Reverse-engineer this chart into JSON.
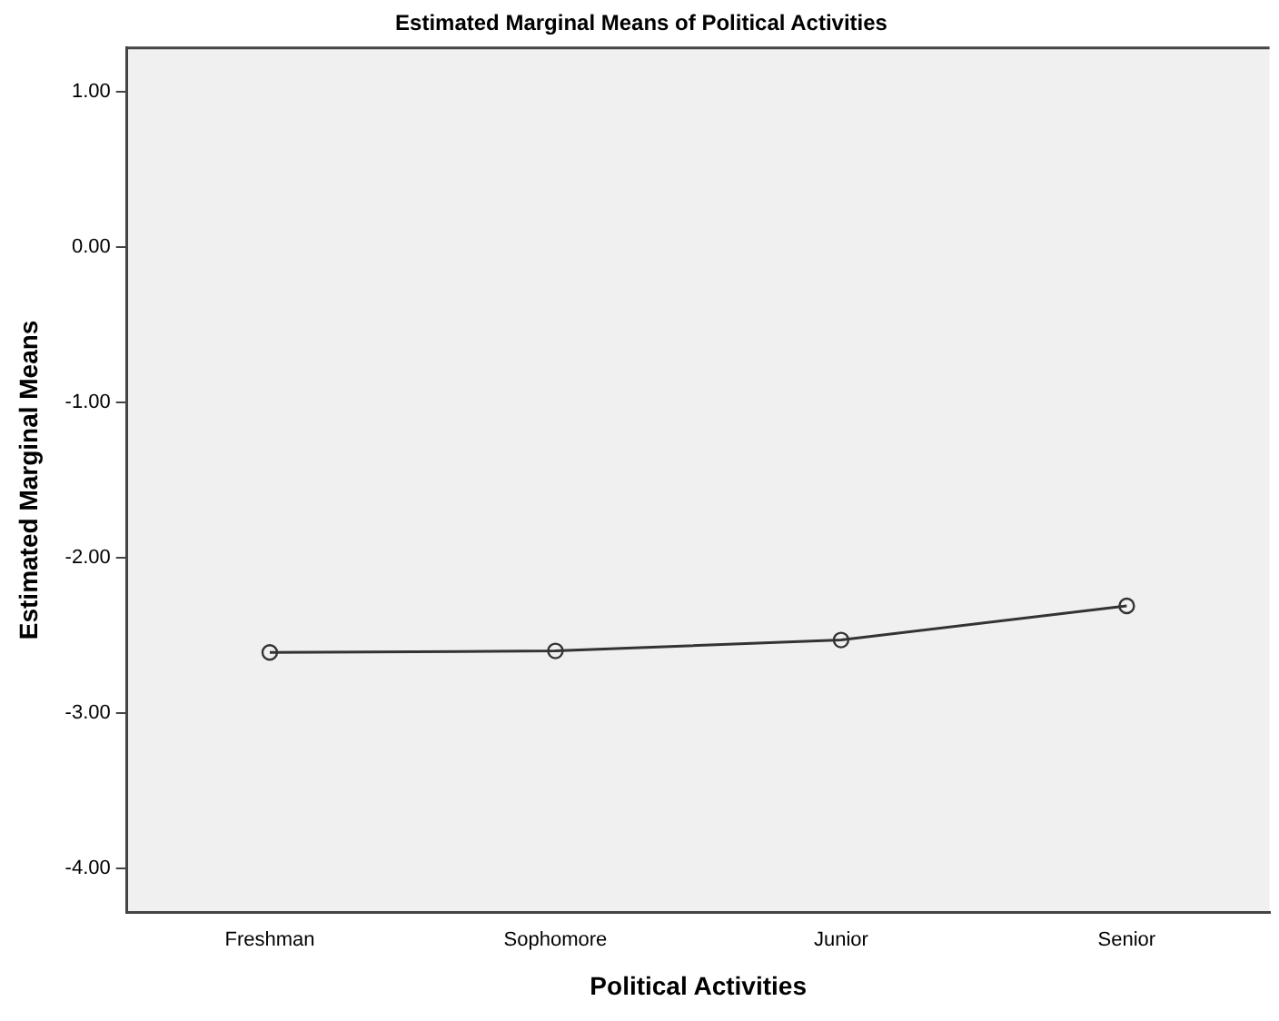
{
  "chart_data": {
    "type": "line",
    "title": "Estimated Marginal Means of Political Activities",
    "xlabel": "Political Activities",
    "ylabel": "Estimated Marginal Means",
    "categories": [
      "Freshman",
      "Sophomore",
      "Junior",
      "Senior"
    ],
    "series": [
      {
        "color": "#333333",
        "values": [
          -2.61,
          -2.6,
          -2.53,
          -2.31
        ]
      }
    ],
    "ylim": [
      -4.28,
      1.28
    ],
    "yticks": [
      {
        "value": -4,
        "label": "-4.00"
      },
      {
        "value": -3,
        "label": "-3.00"
      },
      {
        "value": -2,
        "label": "-2.00"
      },
      {
        "value": -1,
        "label": "-1.00"
      },
      {
        "value": 0,
        "label": "0.00"
      },
      {
        "value": 1,
        "label": "1.00"
      }
    ],
    "grid": false,
    "legend": false,
    "marker": "circle",
    "line_style": "solid"
  }
}
